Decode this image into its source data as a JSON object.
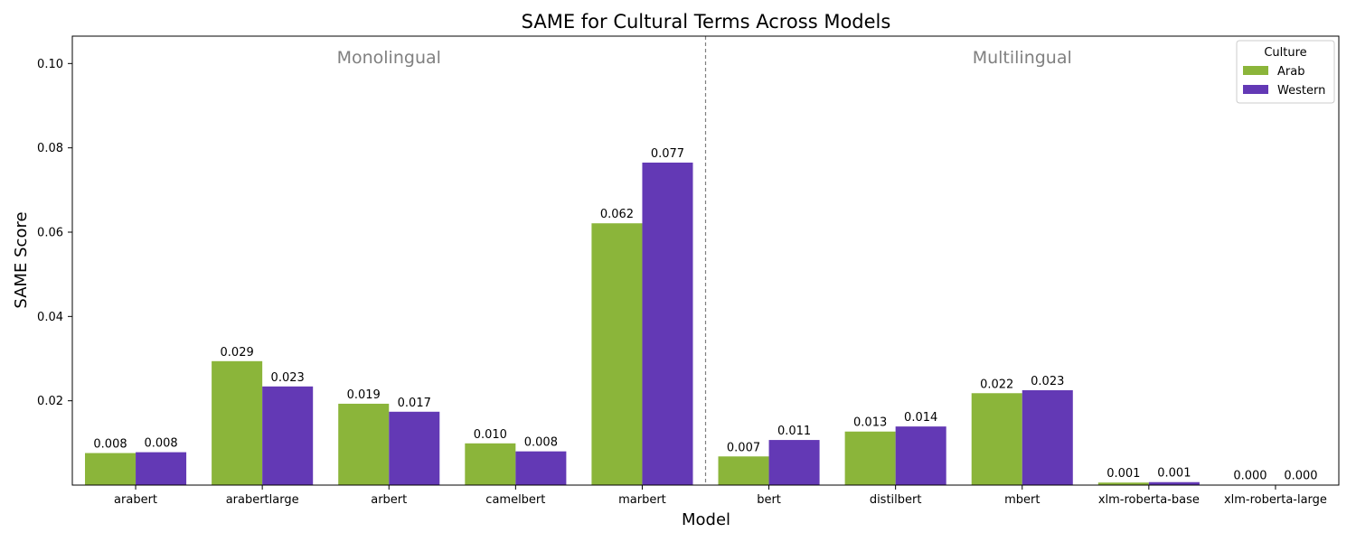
{
  "chart_data": {
    "type": "bar",
    "title": "SAME for Cultural Terms Across Models",
    "xlabel": "Model",
    "ylabel": "SAME Score",
    "categories": [
      "arabert",
      "arabertlarge",
      "arbert",
      "camelbert",
      "marbert",
      "bert",
      "distilbert",
      "mbert",
      "xlm-roberta-base",
      "xlm-roberta-large"
    ],
    "series": [
      {
        "name": "Arab",
        "color": "#8bb53a",
        "values": [
          0.0076,
          0.0294,
          0.0193,
          0.0099,
          0.0621,
          0.0068,
          0.0127,
          0.0218,
          0.0006,
          0.0001
        ],
        "labels": [
          "0.008",
          "0.029",
          "0.019",
          "0.010",
          "0.062",
          "0.007",
          "0.013",
          "0.022",
          "0.001",
          "0.000"
        ]
      },
      {
        "name": "Western",
        "color": "#6339b5",
        "values": [
          0.0078,
          0.0234,
          0.0174,
          0.008,
          0.0765,
          0.0107,
          0.0139,
          0.0225,
          0.0007,
          0.0001
        ],
        "labels": [
          "0.008",
          "0.023",
          "0.017",
          "0.008",
          "0.077",
          "0.011",
          "0.014",
          "0.023",
          "0.001",
          "0.000"
        ]
      }
    ],
    "ylim": [
      0.0,
      0.1065
    ],
    "yticks": [
      0.02,
      0.04,
      0.06,
      0.08,
      0.1
    ],
    "ytick_labels": [
      "0.02",
      "0.04",
      "0.06",
      "0.08",
      "0.10"
    ],
    "grid": false,
    "divider_after_index": 4,
    "group_labels": [
      "Monolingual",
      "Multilingual"
    ],
    "legend": {
      "title": "Culture",
      "placement": "top-right"
    }
  }
}
